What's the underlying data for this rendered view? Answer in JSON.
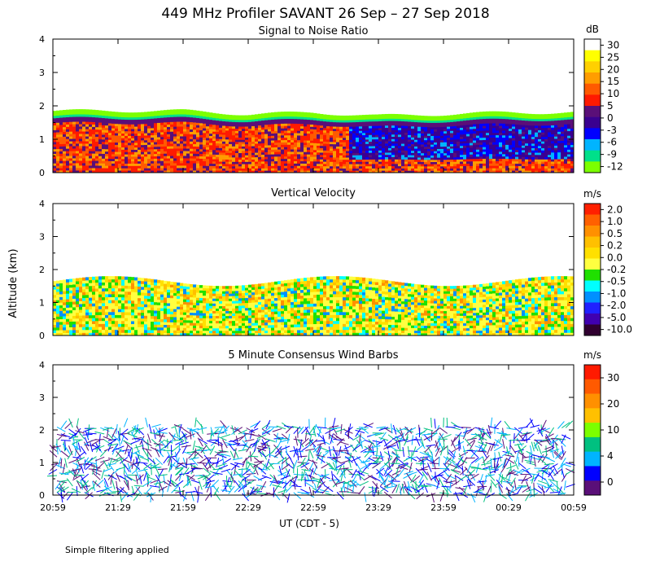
{
  "figure": {
    "title": "449 MHz Profiler SAVANT 26 Sep – 27 Sep 2018",
    "ylabel": "Altitude (km)",
    "xlabel": "UT  (CDT - 5)",
    "footnote": "Simple filtering applied"
  },
  "chart_data": [
    {
      "type": "heatmap",
      "title": "Signal to Noise Ratio",
      "ylabel": "Altitude (km)",
      "ylim": [
        0,
        4
      ],
      "yticks": [
        "0",
        "1",
        "2",
        "3",
        "4"
      ],
      "xticks": [
        "20:59",
        "21:29",
        "21:59",
        "22:29",
        "22:59",
        "23:29",
        "23:59",
        "00:29",
        "00:59"
      ],
      "colorbar": {
        "unit": "dB",
        "labels": [
          "30",
          "25",
          "20",
          "15",
          "10",
          "5",
          "0",
          "-3",
          "-6",
          "-9",
          "-12"
        ],
        "colors": [
          "#ffffff",
          "#ffff00",
          "#ffd000",
          "#ff9d00",
          "#ff5a00",
          "#ff1a00",
          "#5a0f78",
          "#3a0090",
          "#0000ff",
          "#00b4ff",
          "#00e08a",
          "#7cff00"
        ]
      },
      "top_km_by_time": [
        {
          "x": "20:59",
          "top": 1.85
        },
        {
          "x": "21:29",
          "top": 1.85
        },
        {
          "x": "21:59",
          "top": 1.85
        },
        {
          "x": "22:29",
          "top": 1.75
        },
        {
          "x": "22:59",
          "top": 1.8
        },
        {
          "x": "23:29",
          "top": 1.7
        },
        {
          "x": "23:59",
          "top": 1.75
        },
        {
          "x": "00:29",
          "top": 1.8
        },
        {
          "x": "00:59",
          "top": 1.8
        }
      ]
    },
    {
      "type": "heatmap",
      "title": "Vertical Velocity",
      "ylabel": "Altitude (km)",
      "ylim": [
        0,
        4
      ],
      "yticks": [
        "0",
        "1",
        "2",
        "3",
        "4"
      ],
      "xticks": [
        "20:59",
        "21:29",
        "21:59",
        "22:29",
        "22:59",
        "23:29",
        "23:59",
        "00:29",
        "00:59"
      ],
      "colorbar": {
        "unit": "m/s",
        "labels": [
          "2.0",
          "1.0",
          "0.5",
          "0.2",
          "0.0",
          "-0.2",
          "-0.5",
          "-1.0",
          "-2.0",
          "-5.0",
          "-10.0"
        ],
        "colors": [
          "#ff2000",
          "#ff6000",
          "#ff9000",
          "#ffc000",
          "#ffe000",
          "#ffff40",
          "#20e000",
          "#00ffff",
          "#0090ff",
          "#2020ff",
          "#4000b0",
          "#300030"
        ]
      }
    },
    {
      "type": "scatter",
      "title": "5 Minute Consensus Wind Barbs",
      "ylabel": "Altitude (km)",
      "ylim": [
        0,
        4
      ],
      "yticks": [
        "0",
        "1",
        "2",
        "3",
        "4"
      ],
      "xticks": [
        "20:59",
        "21:29",
        "21:59",
        "22:29",
        "22:59",
        "23:29",
        "23:59",
        "00:29",
        "00:59"
      ],
      "colorbar": {
        "unit": "m/s",
        "labels": [
          "30",
          "20",
          "10",
          "4",
          "0"
        ],
        "colors": [
          "#ff1a00",
          "#ff5a00",
          "#ff9000",
          "#ffc000",
          "#7cff00",
          "#00c080",
          "#00b4ff",
          "#0000ff",
          "#5a0f78"
        ]
      }
    }
  ]
}
